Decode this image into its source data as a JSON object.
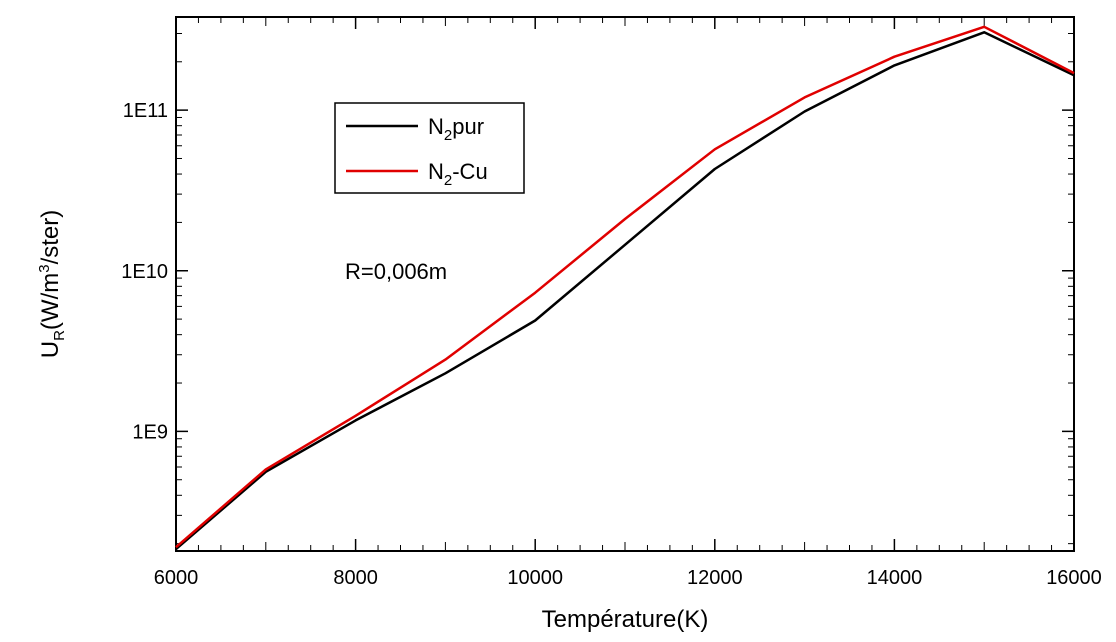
{
  "chart_data": {
    "type": "line",
    "title": "",
    "xlabel": "Température(K)",
    "ylabel": {
      "main": "U",
      "sub": "R",
      "unit_a": "(W/m",
      "unit_sup": "3",
      "unit_b": "/ster)"
    },
    "xlim": [
      6000,
      16000
    ],
    "ylim": [
      180000000.0,
      380000000000.0
    ],
    "yscale": "log",
    "grid": false,
    "legend_position": "top-left",
    "x_ticks": [
      6000,
      8000,
      10000,
      12000,
      14000,
      16000
    ],
    "x_tick_labels": [
      "6000",
      "8000",
      "10000",
      "12000",
      "14000",
      "16000"
    ],
    "y_ticks": [
      1000000000.0,
      10000000000.0,
      100000000000.0
    ],
    "y_tick_labels": [
      "1E9",
      "1E10",
      "1E11"
    ],
    "x": [
      6000,
      7000,
      8000,
      9000,
      10000,
      11000,
      12000,
      13000,
      14000,
      15000,
      16000
    ],
    "series": [
      {
        "name": "N2pur",
        "legend": {
          "base": "N",
          "sub": "2",
          "rest": "pur"
        },
        "color": "#000000",
        "values": [
          185000000.0,
          560000000.0,
          1170000000.0,
          2300000000.0,
          4900000000.0,
          14500000000.0,
          43000000000.0,
          98000000000.0,
          190000000000.0,
          305000000000.0,
          165000000000.0
        ]
      },
      {
        "name": "N2-Cu",
        "legend": {
          "base": "N",
          "sub": "2",
          "rest": "-Cu"
        },
        "color": "#e00000",
        "values": [
          190000000.0,
          580000000.0,
          1250000000.0,
          2800000000.0,
          7300000000.0,
          21000000000.0,
          57000000000.0,
          120000000000.0,
          215000000000.0,
          330000000000.0,
          170000000000.0
        ]
      }
    ],
    "annotations": [
      {
        "text": "R=0,006m"
      }
    ]
  }
}
